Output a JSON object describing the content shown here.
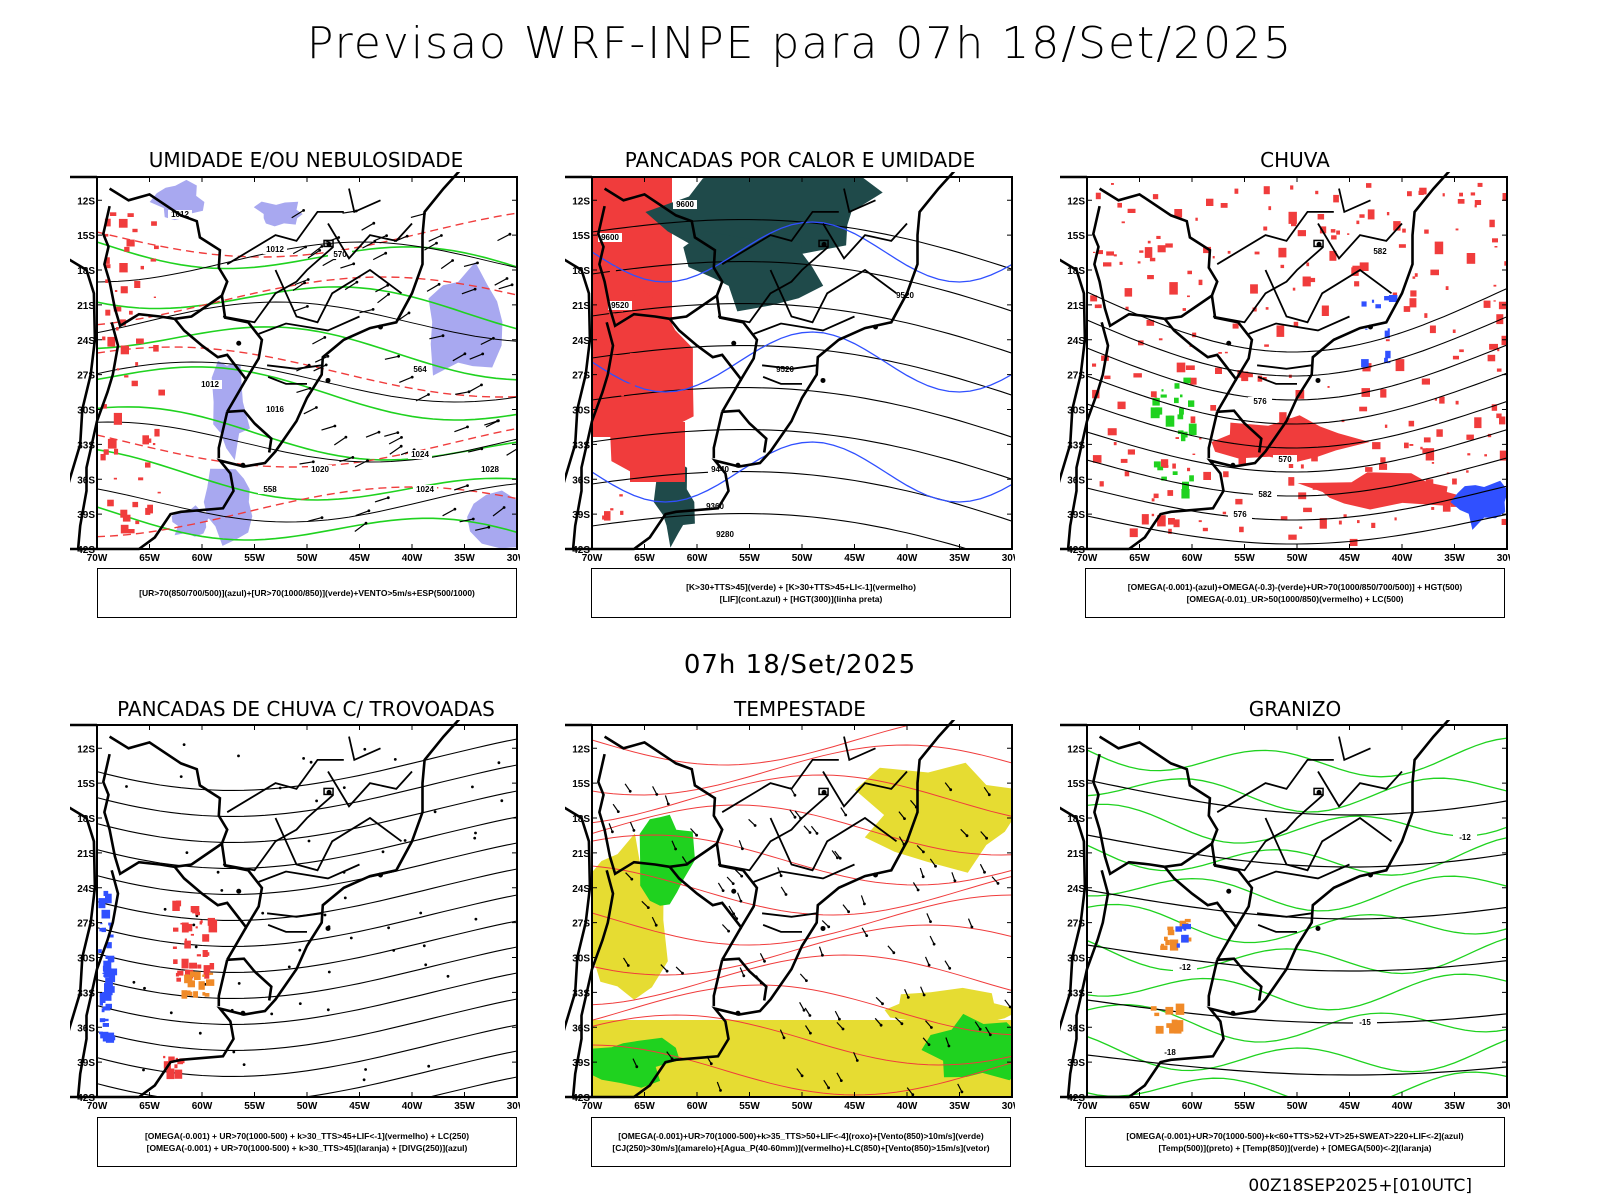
{
  "title": "Previsao WRF-INPE  para 07h 18/Set/2025",
  "mid_title": "07h 18/Set/2025",
  "footer": "00Z18SEP2025+[010UTC]",
  "lat_ticks": [
    "12S",
    "15S",
    "18S",
    "21S",
    "24S",
    "27S",
    "30S",
    "33S",
    "36S",
    "39S",
    "42S"
  ],
  "lon_ticks": [
    "70W",
    "65W",
    "60W",
    "55W",
    "50W",
    "45W",
    "40W",
    "35W",
    "30W"
  ],
  "panels": [
    {
      "title": "UMIDADE E/OU NEBULOSIDADE",
      "legend": [
        "[UR>70(850/700/500)](azul)+[UR>70(1000/850)](verde)+VENTO>5m/s+ESP(500/1000)"
      ]
    },
    {
      "title": "PANCADAS POR CALOR E UMIDADE",
      "legend": [
        "[K>30+TTS>45](verde) + [K>30+TTS>45+LI<-1](vermelho)",
        "[LIF](cont.azul) + [HGT(300)](linha preta)"
      ]
    },
    {
      "title": "CHUVA",
      "legend": [
        "[OMEGA(-0.001)-(azul)+OMEGA(-0.3)-(verde)+UR>70(1000/850/700/500)] + HGT(500)",
        "[OMEGA(-0.01)_UR>50(1000/850)(vermelho) + LC(500)"
      ]
    },
    {
      "title": "PANCADAS DE CHUVA C/ TROVOADAS",
      "legend": [
        "[OMEGA(-0.001) + UR>70(1000-500) + k>30_TTS>45+LIF<-1](vermelho) + LC(250)",
        "[OMEGA(-0.001) + UR>70(1000-500) + k>30_TTS>45](laranja) + [DIVG(250)](azul)"
      ]
    },
    {
      "title": "TEMPESTADE",
      "legend": [
        "[OMEGA(-0.001)+UR>70(1000-500)+k>35_TTS>50+LIF<-4](roxo)+[Vento(850)>10m/s](verde)",
        "[CJ(250)>30m/s](amarelo)+[Agua_P(40-60mm)](vermelho)+LC(850)+[Vento(850)>15m/s](vetor)"
      ]
    },
    {
      "title": "GRANIZO",
      "legend": [
        "[OMEGA(-0.001)+UR>70(1000-500)+k<60+TTS>52+VT>25+SWEAT>220+LIF<-2](azul)",
        "[Temp(500)](preto) + [Temp(850)](verde) + [OMEGA(500)<-2](laranja)"
      ]
    }
  ],
  "contour_labels": {
    "p1": [
      "1012",
      "1012",
      "1012",
      "1016",
      "1020",
      "1024",
      "1028",
      "1024",
      "570",
      "564",
      "558"
    ],
    "p2": [
      "9600",
      "9600",
      "9520",
      "9440",
      "9360",
      "9280",
      "9520",
      "9520"
    ],
    "p3": [
      "582",
      "576",
      "570",
      "582",
      "576"
    ],
    "p6": [
      "-12",
      "-12",
      "-15",
      "-18"
    ]
  },
  "colors": {
    "red": "#f03c3c",
    "green": "#1fd21f",
    "blue": "#3050ff",
    "lavender": "#a8a8f0",
    "dark_teal": "#1f4a4a",
    "yellow": "#e6dc32",
    "orange": "#f08a28"
  }
}
